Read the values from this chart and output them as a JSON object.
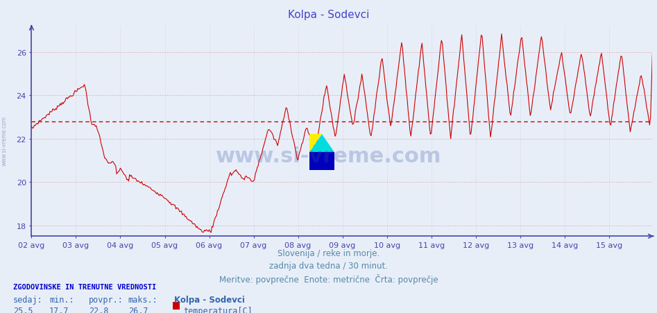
{
  "title": "Kolpa - Sodevci",
  "title_color": "#4444cc",
  "bg_color": "#e8eef8",
  "plot_bg_color": "#e8eef8",
  "line_color": "#cc0000",
  "avg_line_color": "#cc0000",
  "avg_value": 22.8,
  "ymin": 17.5,
  "ymax": 27.2,
  "yticks": [
    18,
    20,
    22,
    24,
    26
  ],
  "grid_color": "#dd9999",
  "vgrid_color": "#ccccdd",
  "axis_color": "#4444aa",
  "tick_color": "#4444aa",
  "n_points": 672,
  "x_day_labels": [
    "02 avg",
    "03 avg",
    "04 avg",
    "05 avg",
    "06 avg",
    "07 avg",
    "08 avg",
    "09 avg",
    "10 avg",
    "11 avg",
    "12 avg",
    "13 avg",
    "14 avg",
    "15 avg"
  ],
  "stats_label": "ZGODOVINSKE IN TRENUTNE VREDNOSTI",
  "stats_sedaj": "25,5",
  "stats_min": "17,7",
  "stats_povpr": "22,8",
  "stats_maks": "26,7",
  "legend_name": "Kolpa - Sodevci",
  "legend_series": "temperatura[C]"
}
